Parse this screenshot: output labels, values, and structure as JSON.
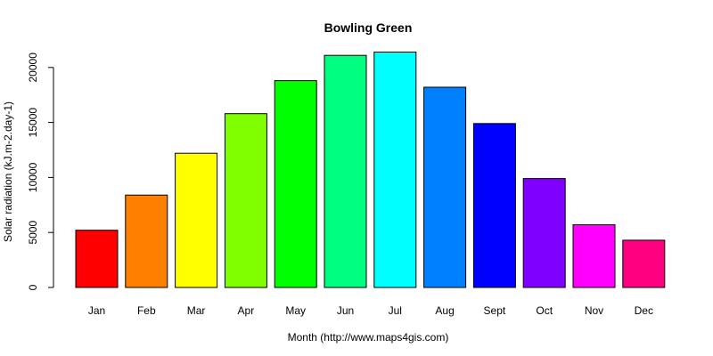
{
  "chart_data": {
    "type": "bar",
    "title": "Bowling Green",
    "xlabel": "Month (http://www.maps4gis.com)",
    "ylabel": "Solar radiation (kJ.m-2.day-1)",
    "categories": [
      "Jan",
      "Feb",
      "Mar",
      "Apr",
      "May",
      "Jun",
      "Jul",
      "Aug",
      "Sept",
      "Oct",
      "Nov",
      "Dec"
    ],
    "values": [
      5200,
      8400,
      12200,
      15800,
      18800,
      21100,
      21400,
      18200,
      14900,
      9900,
      5700,
      4300
    ],
    "colors": [
      "#FF0000",
      "#FF8000",
      "#FFFF00",
      "#80FF00",
      "#00FF00",
      "#00FF80",
      "#00FFFF",
      "#0080FF",
      "#0000FF",
      "#8000FF",
      "#FF00FF",
      "#FF0080"
    ],
    "ylim": [
      0,
      21500
    ],
    "yticks": [
      "0",
      "5000",
      "10000",
      "15000",
      "20000"
    ],
    "grid": false,
    "legend": "none"
  }
}
